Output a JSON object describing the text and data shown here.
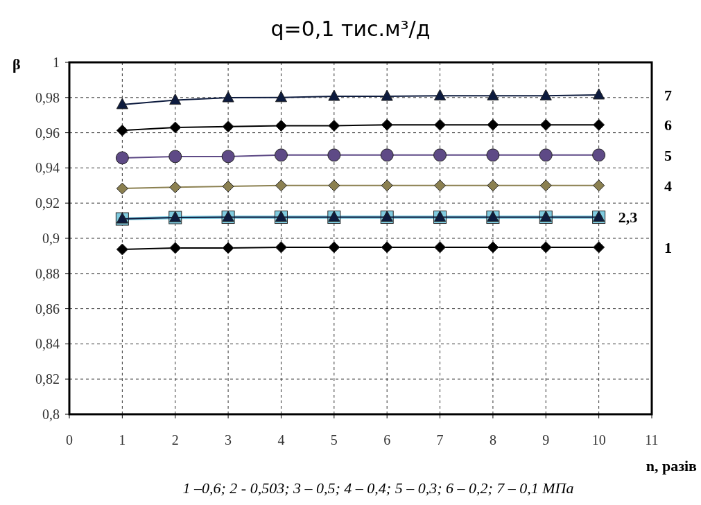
{
  "chart_data": {
    "type": "line",
    "title": "q=0,1 тис.м³/д",
    "xlabel": "n, разів",
    "ylabel": "β",
    "x": [
      1,
      2,
      3,
      4,
      5,
      6,
      7,
      8,
      9,
      10
    ],
    "xlim": [
      0,
      11
    ],
    "xticks": [
      0,
      1,
      2,
      3,
      4,
      5,
      6,
      7,
      8,
      9,
      10,
      11
    ],
    "ylim": [
      0.8,
      1
    ],
    "yticks": [
      {
        "value": 0.8,
        "label": "0,8"
      },
      {
        "value": 0.82,
        "label": "0,82"
      },
      {
        "value": 0.84,
        "label": "0,84"
      },
      {
        "value": 0.86,
        "label": "0,86"
      },
      {
        "value": 0.88,
        "label": "0,88"
      },
      {
        "value": 0.9,
        "label": "0,9"
      },
      {
        "value": 0.92,
        "label": "0,92"
      },
      {
        "value": 0.94,
        "label": "0,94"
      },
      {
        "value": 0.96,
        "label": "0,96"
      },
      {
        "value": 0.98,
        "label": "0,98"
      },
      {
        "value": 1,
        "label": "1"
      }
    ],
    "grid": true,
    "series": [
      {
        "name": "1",
        "color": "#000000",
        "marker": "diamond",
        "values": [
          0.8937,
          0.8945,
          0.8945,
          0.8949,
          0.8949,
          0.8949,
          0.8949,
          0.8949,
          0.8949,
          0.8949
        ]
      },
      {
        "color": "#7fcbe0",
        "marker": "square",
        "values": [
          0.911,
          0.9118,
          0.912,
          0.912,
          0.912,
          0.912,
          0.912,
          0.912,
          0.912,
          0.912
        ]
      },
      {
        "color": "#0d1b3e",
        "marker": "triangle",
        "values": [
          0.911,
          0.9118,
          0.912,
          0.912,
          0.912,
          0.912,
          0.912,
          0.912,
          0.912,
          0.912
        ]
      },
      {
        "name": "4",
        "color": "#8b8050",
        "marker": "diamond",
        "values": [
          0.9283,
          0.929,
          0.9295,
          0.93,
          0.93,
          0.93,
          0.93,
          0.93,
          0.93,
          0.93
        ]
      },
      {
        "name": "5",
        "color": "#5e4a86",
        "marker": "circle",
        "values": [
          0.9457,
          0.9465,
          0.9465,
          0.9473,
          0.9473,
          0.9473,
          0.9473,
          0.9473,
          0.9473,
          0.9473
        ]
      },
      {
        "name": "6",
        "color": "#000000",
        "marker": "diamond",
        "values": [
          0.9613,
          0.963,
          0.9635,
          0.964,
          0.964,
          0.9645,
          0.9645,
          0.9645,
          0.9645,
          0.9645
        ]
      },
      {
        "name": "7",
        "color": "#0d1b3e",
        "marker": "triangle",
        "values": [
          0.976,
          0.9785,
          0.9799,
          0.98,
          0.9807,
          0.9807,
          0.981,
          0.981,
          0.981,
          0.9815
        ]
      }
    ],
    "annotations": [
      {
        "text": "2,3",
        "x": 10,
        "y": 0.912
      },
      "1 –0,6; 2 - 0,503; 3 – 0,5; 4 – 0,4; 5 – 0,3; 6 – 0,2; 7 – 0,1 МПа"
    ]
  }
}
